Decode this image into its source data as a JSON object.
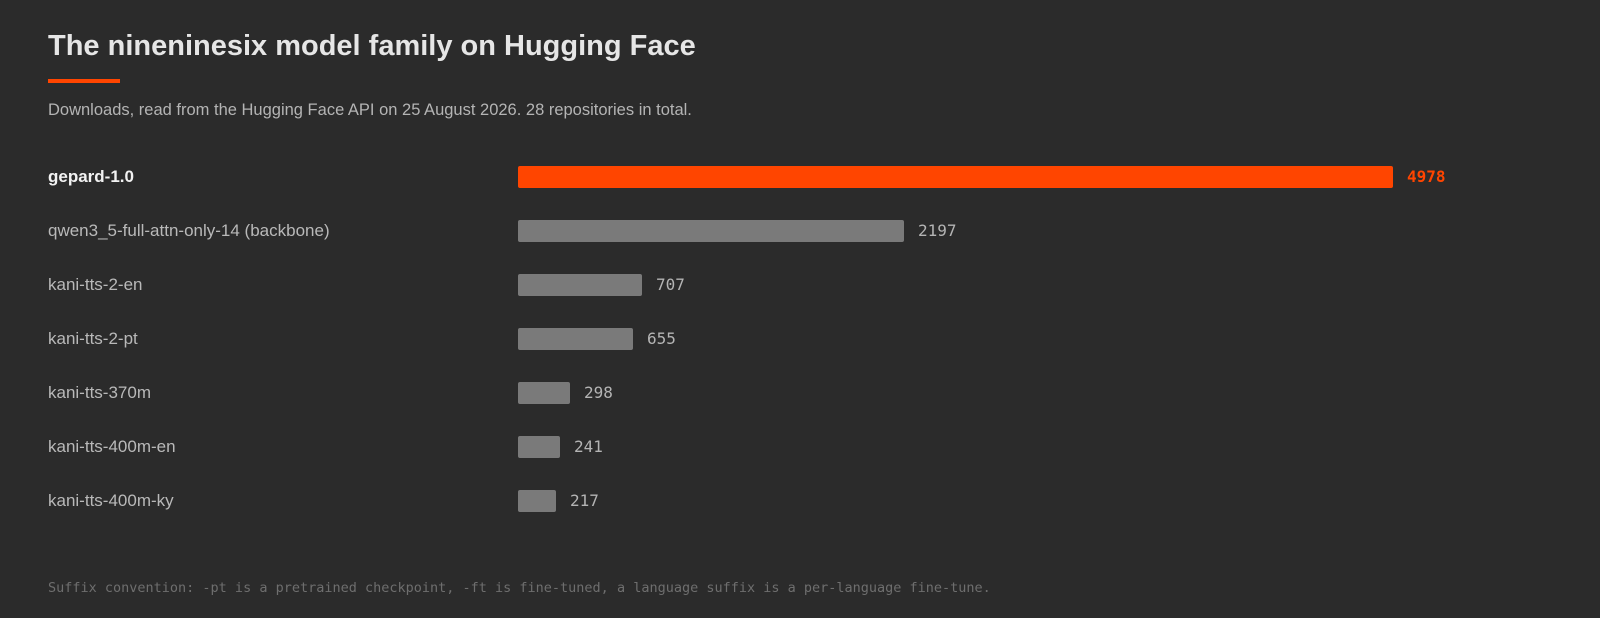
{
  "header": {
    "title": "The nineninesix model family on Hugging Face",
    "subtitle": "Downloads, read from the Hugging Face API on 25 August 2026. 28 repositories in total."
  },
  "colors": {
    "background": "#2b2b2b",
    "accent": "#ff4500",
    "bar": "#7a7a7a"
  },
  "chart_data": {
    "type": "bar",
    "orientation": "horizontal",
    "title": "The nineninesix model family on Hugging Face",
    "subtitle": "Downloads, read from the Hugging Face API on 25 August 2026. 28 repositories in total.",
    "categories": [
      "gepard-1.0",
      "qwen3_5-full-attn-only-14 (backbone)",
      "kani-tts-2-en",
      "kani-tts-2-pt",
      "kani-tts-370m",
      "kani-tts-400m-en",
      "kani-tts-400m-ky"
    ],
    "values": [
      4978,
      2197,
      707,
      655,
      298,
      241,
      217
    ],
    "highlighted": "gepard-1.0",
    "xlabel": "",
    "ylabel": "",
    "xlim": [
      0,
      4978
    ],
    "grid": false,
    "legend": "none"
  },
  "footnote": "Suffix convention: -pt is a pretrained checkpoint, -ft is fine-tuned, a language suffix is a per-language fine-tune."
}
